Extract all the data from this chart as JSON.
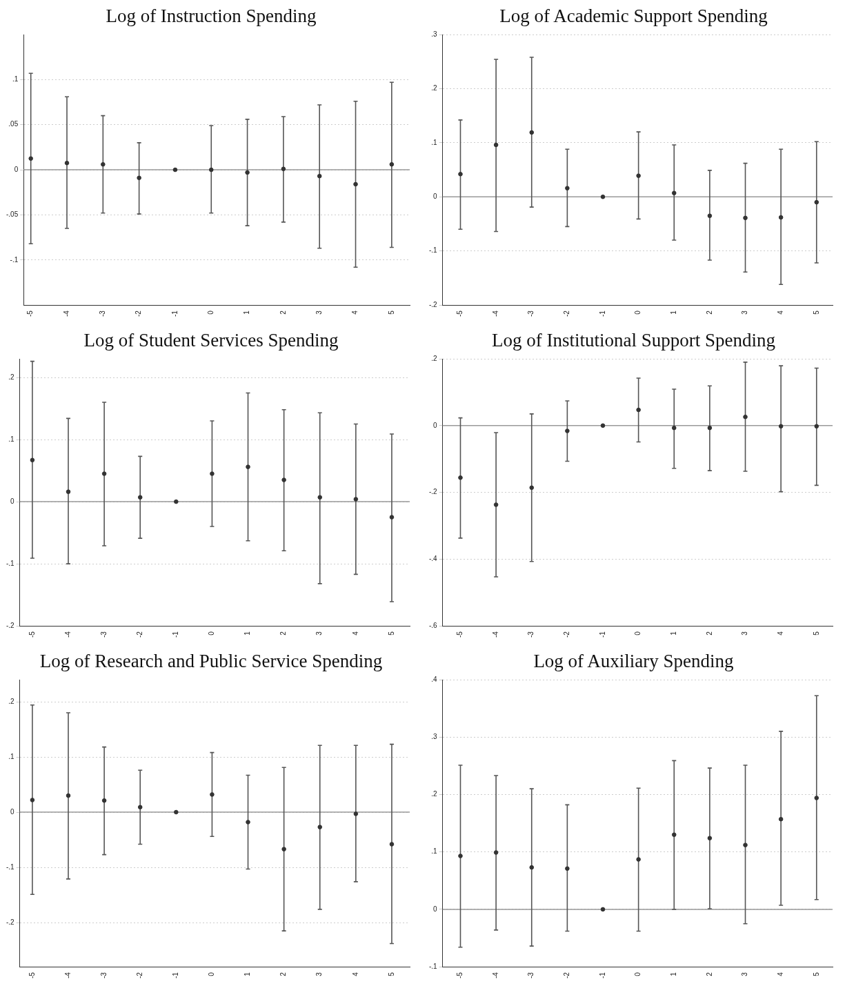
{
  "chart_data": [
    {
      "type": "scatter",
      "title": "Log of Instruction Spending",
      "color": "#333333",
      "marker": "circle",
      "grid": "y",
      "x": [
        -5,
        -4,
        -3,
        -2,
        -1,
        0,
        1,
        2,
        3,
        4,
        5
      ],
      "values": [
        0.0125,
        0.0075,
        0.006,
        -0.009,
        0,
        0,
        -0.003,
        0.001,
        -0.007,
        -0.016,
        0.006
      ],
      "errors": [
        [
          -0.082,
          0.107
        ],
        [
          -0.065,
          0.081
        ],
        [
          -0.048,
          0.06
        ],
        [
          -0.049,
          0.03
        ],
        null,
        [
          -0.048,
          0.049
        ],
        [
          -0.062,
          0.056
        ],
        [
          -0.058,
          0.059
        ],
        [
          -0.087,
          0.072
        ],
        [
          -0.108,
          0.076
        ],
        [
          -0.086,
          0.097
        ]
      ],
      "xlim": [
        -5.2,
        5.5
      ],
      "xticks": [
        -5,
        -4,
        -3,
        -2,
        -1,
        0,
        1,
        2,
        3,
        4,
        5
      ],
      "ylim": [
        -0.15,
        0.15
      ],
      "yticks": [
        {
          "value": -0.1,
          "label": "-.1"
        },
        {
          "value": -0.05,
          "label": "-.05"
        },
        {
          "value": 0,
          "label": "0"
        },
        {
          "value": 0.05,
          "label": ".05"
        },
        {
          "value": 0.1,
          "label": ".1"
        }
      ],
      "ref_lines": [
        {
          "axis": "y",
          "value": 0,
          "color": "#999999"
        }
      ]
    },
    {
      "type": "scatter",
      "title": "Log of Academic Support Spending",
      "color": "#333333",
      "marker": "circle",
      "grid": "y",
      "x": [
        -5,
        -4,
        -3,
        -2,
        -1,
        0,
        1,
        2,
        3,
        4,
        5
      ],
      "values": [
        0.042,
        0.096,
        0.119,
        0.016,
        0,
        0.039,
        0.007,
        -0.035,
        -0.039,
        -0.038,
        -0.01
      ],
      "errors": [
        [
          -0.06,
          0.142
        ],
        [
          -0.064,
          0.254
        ],
        [
          -0.019,
          0.258
        ],
        [
          -0.055,
          0.088
        ],
        null,
        [
          -0.041,
          0.12
        ],
        [
          -0.08,
          0.096
        ],
        [
          -0.117,
          0.049
        ],
        [
          -0.139,
          0.062
        ],
        [
          -0.162,
          0.088
        ],
        [
          -0.122,
          0.102
        ]
      ],
      "xlim": [
        -5.5,
        5.45
      ],
      "xticks": [
        -5,
        -4,
        -3,
        -2,
        -1,
        0,
        1,
        2,
        3,
        4,
        5
      ],
      "ylim": [
        -0.2,
        0.3
      ],
      "yticks": [
        {
          "value": -0.2,
          "label": "-.2"
        },
        {
          "value": -0.1,
          "label": "-.1"
        },
        {
          "value": 0,
          "label": "0"
        },
        {
          "value": 0.1,
          "label": ".1"
        },
        {
          "value": 0.2,
          "label": ".2"
        },
        {
          "value": 0.3,
          "label": ".3"
        }
      ],
      "ref_lines": [
        {
          "axis": "y",
          "value": 0,
          "color": "#999999"
        }
      ]
    },
    {
      "type": "scatter",
      "title": "Log of Student Services Spending",
      "color": "#333333",
      "marker": "circle",
      "grid": "y",
      "x": [
        -5,
        -4,
        -3,
        -2,
        -1,
        0,
        1,
        2,
        3,
        4,
        5
      ],
      "values": [
        0.067,
        0.016,
        0.045,
        0.007,
        0,
        0.045,
        0.056,
        0.035,
        0.007,
        0.004,
        -0.025
      ],
      "errors": [
        [
          -0.091,
          0.226
        ],
        [
          -0.1,
          0.134
        ],
        [
          -0.071,
          0.16
        ],
        [
          -0.059,
          0.073
        ],
        null,
        [
          -0.04,
          0.13
        ],
        [
          -0.063,
          0.175
        ],
        [
          -0.079,
          0.148
        ],
        [
          -0.132,
          0.143
        ],
        [
          -0.117,
          0.125
        ],
        [
          -0.161,
          0.109
        ]
      ],
      "xlim": [
        -5.35,
        5.5
      ],
      "xticks": [
        -5,
        -4,
        -3,
        -2,
        -1,
        0,
        1,
        2,
        3,
        4,
        5
      ],
      "ylim": [
        -0.2,
        0.23
      ],
      "yticks": [
        {
          "value": -0.2,
          "label": "-.2"
        },
        {
          "value": -0.1,
          "label": "-.1"
        },
        {
          "value": 0,
          "label": "0"
        },
        {
          "value": 0.1,
          "label": ".1"
        },
        {
          "value": 0.2,
          "label": ".2"
        }
      ],
      "ref_lines": [
        {
          "axis": "y",
          "value": 0,
          "color": "#999999"
        }
      ]
    },
    {
      "type": "scatter",
      "title": "Log of Institutional Support Spending",
      "color": "#333333",
      "marker": "circle",
      "grid": "y",
      "x": [
        -5,
        -4,
        -3,
        -2,
        -1,
        0,
        1,
        2,
        3,
        4,
        5
      ],
      "values": [
        -0.156,
        -0.237,
        -0.186,
        -0.016,
        0,
        0.047,
        -0.007,
        -0.007,
        0.026,
        -0.002,
        -0.002
      ],
      "errors": [
        [
          -0.337,
          0.023
        ],
        [
          -0.453,
          -0.021
        ],
        [
          -0.407,
          0.035
        ],
        [
          -0.107,
          0.074
        ],
        null,
        [
          -0.049,
          0.142
        ],
        [
          -0.128,
          0.109
        ],
        [
          -0.135,
          0.119
        ],
        [
          -0.137,
          0.19
        ],
        [
          -0.198,
          0.179
        ],
        [
          -0.179,
          0.172
        ]
      ],
      "xlim": [
        -5.5,
        5.45
      ],
      "xticks": [
        -5,
        -4,
        -3,
        -2,
        -1,
        0,
        1,
        2,
        3,
        4,
        5
      ],
      "ylim": [
        -0.6,
        0.2
      ],
      "yticks": [
        {
          "value": -0.6,
          "label": "-.6"
        },
        {
          "value": -0.4,
          "label": "-.4"
        },
        {
          "value": -0.2,
          "label": "-.2"
        },
        {
          "value": 0,
          "label": "0"
        },
        {
          "value": 0.2,
          "label": ".2"
        }
      ],
      "ref_lines": [
        {
          "axis": "y",
          "value": 0,
          "color": "#999999"
        }
      ]
    },
    {
      "type": "scatter",
      "title": "Log of Research and Public Service Spending",
      "color": "#333333",
      "marker": "circle",
      "grid": "y",
      "x": [
        -5,
        -4,
        -3,
        -2,
        -1,
        0,
        1,
        2,
        3,
        4,
        5
      ],
      "values": [
        0.022,
        0.03,
        0.021,
        0.009,
        0,
        0.032,
        -0.018,
        -0.067,
        -0.027,
        -0.003,
        -0.058
      ],
      "errors": [
        [
          -0.149,
          0.194
        ],
        [
          -0.121,
          0.18
        ],
        [
          -0.077,
          0.118
        ],
        [
          -0.058,
          0.076
        ],
        null,
        [
          -0.044,
          0.108
        ],
        [
          -0.103,
          0.067
        ],
        [
          -0.215,
          0.081
        ],
        [
          -0.176,
          0.121
        ],
        [
          -0.126,
          0.121
        ],
        [
          -0.238,
          0.123
        ]
      ],
      "xlim": [
        -5.35,
        5.5
      ],
      "xticks": [
        -5,
        -4,
        -3,
        -2,
        -1,
        0,
        1,
        2,
        3,
        4,
        5
      ],
      "ylim": [
        -0.28,
        0.24
      ],
      "yticks": [
        {
          "value": -0.2,
          "label": "-.2"
        },
        {
          "value": -0.1,
          "label": "-.1"
        },
        {
          "value": 0,
          "label": "0"
        },
        {
          "value": 0.1,
          "label": ".1"
        },
        {
          "value": 0.2,
          "label": ".2"
        }
      ],
      "ref_lines": [
        {
          "axis": "y",
          "value": 0,
          "color": "#999999"
        }
      ]
    },
    {
      "type": "scatter",
      "title": "Log of Auxiliary Spending",
      "color": "#333333",
      "marker": "circle",
      "grid": "y",
      "x": [
        -5,
        -4,
        -3,
        -2,
        -1,
        0,
        1,
        2,
        3,
        4,
        5
      ],
      "values": [
        0.093,
        0.099,
        0.073,
        0.071,
        0,
        0.087,
        0.13,
        0.124,
        0.112,
        0.157,
        0.194
      ],
      "errors": [
        [
          -0.066,
          0.251
        ],
        [
          -0.036,
          0.233
        ],
        [
          -0.064,
          0.21
        ],
        [
          -0.038,
          0.182
        ],
        null,
        [
          -0.038,
          0.211
        ],
        [
          0,
          0.259
        ],
        [
          0.001,
          0.246
        ],
        [
          -0.025,
          0.251
        ],
        [
          0.007,
          0.31
        ],
        [
          0.017,
          0.372
        ]
      ],
      "xlim": [
        -5.5,
        5.45
      ],
      "xticks": [
        -5,
        -4,
        -3,
        -2,
        -1,
        0,
        1,
        2,
        3,
        4,
        5
      ],
      "ylim": [
        -0.1,
        0.4
      ],
      "yticks": [
        {
          "value": -0.1,
          "label": "-.1"
        },
        {
          "value": 0,
          "label": "0"
        },
        {
          "value": 0.1,
          "label": ".1"
        },
        {
          "value": 0.2,
          "label": ".2"
        },
        {
          "value": 0.3,
          "label": ".3"
        },
        {
          "value": 0.4,
          "label": ".4"
        }
      ],
      "ref_lines": [
        {
          "axis": "y",
          "value": 0,
          "color": "#999999"
        }
      ]
    }
  ]
}
